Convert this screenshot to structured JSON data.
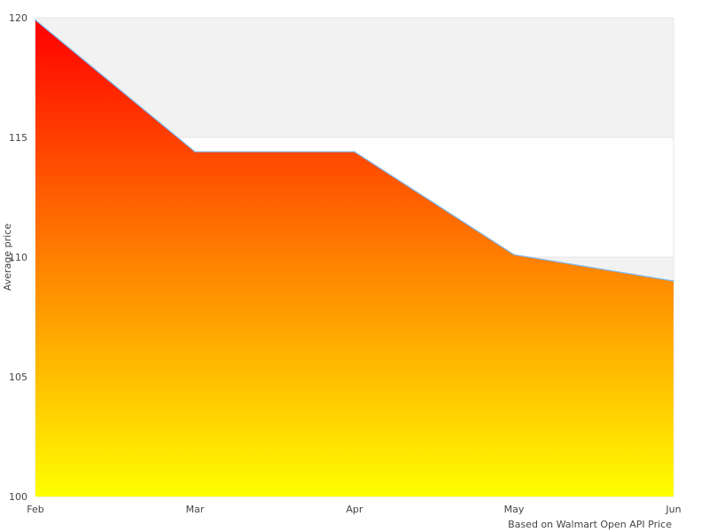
{
  "chart_data": {
    "type": "area",
    "categories": [
      "Feb",
      "Mar",
      "Apr",
      "May",
      "Jun"
    ],
    "values": [
      119.9,
      114.4,
      114.4,
      110.1,
      109.0
    ],
    "ylabel": "Average price",
    "xlabel": "Based on Walmart Open API Price",
    "ylim": [
      100,
      120
    ],
    "yticks": [
      "100",
      "105",
      "110",
      "115",
      "120"
    ],
    "grid": "alternating horizontal bands",
    "legend": "none",
    "colors": {
      "fill_top": "#ff0000",
      "fill_bottom": "#ffff00",
      "line": "#7cb5ec",
      "band": "#f2f2f2",
      "grid": "#e6e6e6"
    }
  }
}
